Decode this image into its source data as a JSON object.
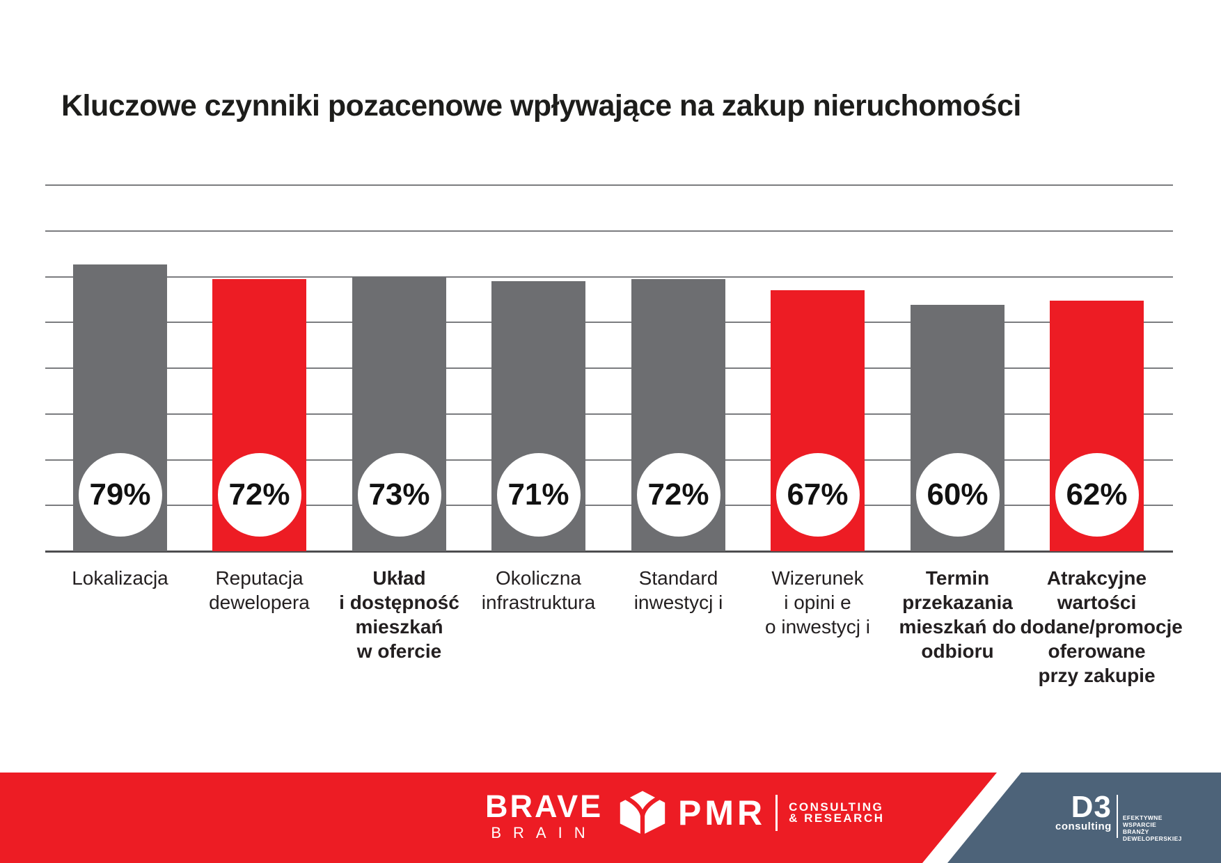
{
  "title": "Kluczowe czynniki pozacenowe wpływające na zakup nieruchomości",
  "chart_data": {
    "type": "bar",
    "title": "Kluczowe czynniki pozacenowe wpływające na zakup nieruchomości",
    "unit": "%",
    "ylim": [
      0,
      100
    ],
    "grid": true,
    "legend": "none",
    "categories": [
      "Lokalizacja",
      "Reputacja dewelopera",
      "Układ i dostępność mieszkań w ofercie",
      "Okoliczna infrastruktura",
      "Standard inwestycj i",
      "Wizerunek i opini e o inwestycj i",
      "Termin przekazania mieszkań do odbioru",
      "Atrakcyjne wartości dodane/promocje oferowane przy zakupie"
    ],
    "values": [
      79,
      72,
      73,
      71,
      72,
      67,
      60,
      62
    ],
    "bars": [
      {
        "value": 79,
        "display": "79%",
        "color_key": "bar_gray",
        "bold": false,
        "label_lines": [
          "Lokalizacja"
        ]
      },
      {
        "value": 72,
        "display": "72%",
        "color_key": "bar_red",
        "bold": false,
        "label_lines": [
          "Reputacja",
          "dewelopera"
        ]
      },
      {
        "value": 73,
        "display": "73%",
        "color_key": "bar_gray",
        "bold": true,
        "label_lines": [
          "Układ",
          "i dostępność",
          "mieszkań",
          "w ofercie"
        ]
      },
      {
        "value": 71,
        "display": "71%",
        "color_key": "bar_gray",
        "bold": false,
        "label_lines": [
          "Okoliczna",
          "infrastruktura"
        ]
      },
      {
        "value": 72,
        "display": "72%",
        "color_key": "bar_gray",
        "bold": false,
        "label_lines": [
          "Standard",
          "inwestycj i"
        ]
      },
      {
        "value": 67,
        "display": "67%",
        "color_key": "bar_red",
        "bold": false,
        "label_lines": [
          "Wizerunek",
          "i opini e",
          "o inwestycj i"
        ]
      },
      {
        "value": 60,
        "display": "60%",
        "color_key": "bar_gray",
        "bold": true,
        "label_lines": [
          "Termin",
          "przekazania",
          "mieszkań do",
          "odbioru"
        ]
      },
      {
        "value": 62,
        "display": "62%",
        "color_key": "bar_red",
        "bold": true,
        "label_lines": [
          "Atrakcyjne",
          "wartości",
          "dodane/promocje",
          "oferowane",
          "przy zakupie"
        ]
      }
    ]
  },
  "colors": {
    "bar_gray": "#6d6e71",
    "bar_red": "#ed1c24",
    "grid_line": "#7b7c7f",
    "axis_line": "#4d4d4f",
    "footer_red": "#ed1c24",
    "footer_slate": "#4d6379",
    "label_text": "#231f20"
  },
  "footer": {
    "brave": {
      "line1": "BRAVE",
      "line2": "BRAIN"
    },
    "pmr": {
      "name": "PMR",
      "tagline": [
        "CONSULTING",
        "& RESEARCH"
      ]
    },
    "d3": {
      "name": "D3",
      "sub": "consulting",
      "tagline": [
        "EFEKTYWNE",
        "WSPARCIE",
        "BRANŻY",
        "DEWELOPERSKIEJ"
      ]
    }
  }
}
